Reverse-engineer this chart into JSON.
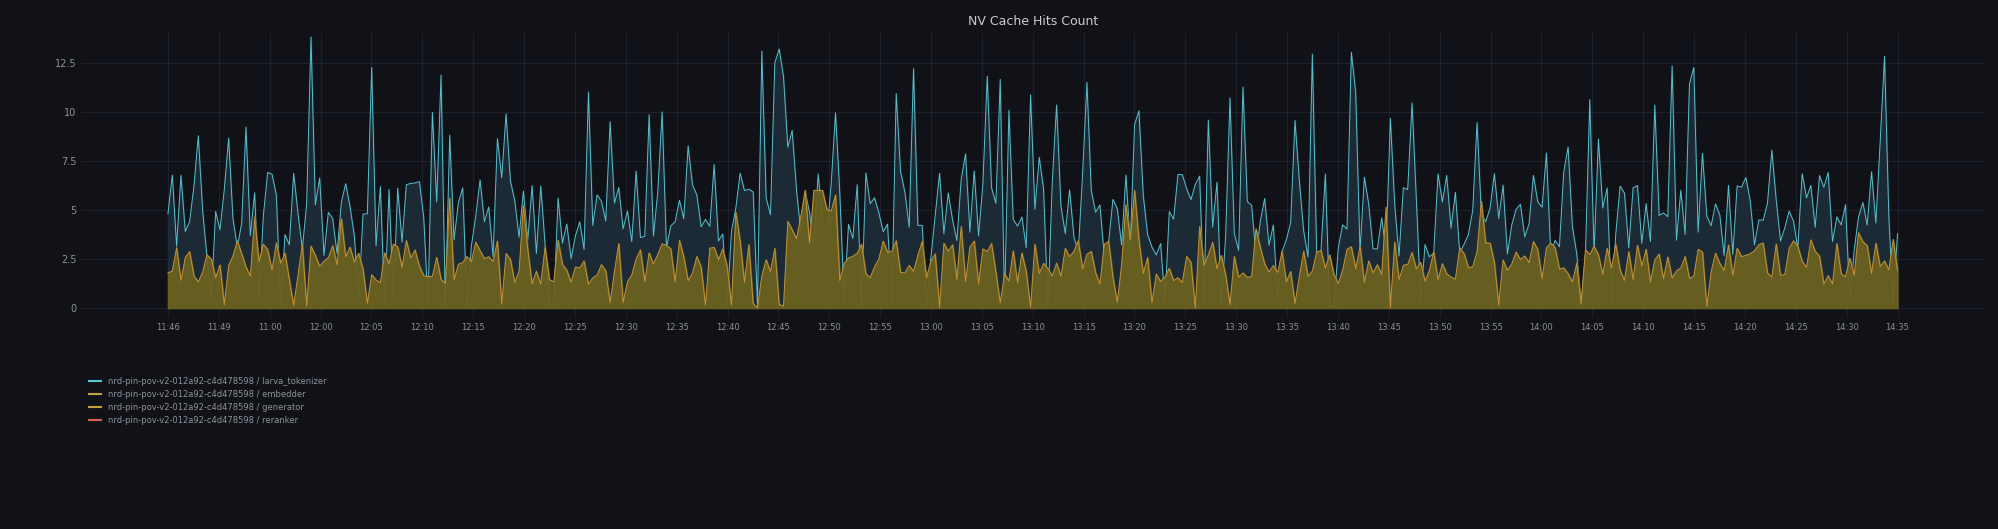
{
  "title": "NV Cache Hits Count",
  "bg_color": "#111217",
  "plot_bg_color": "#111217",
  "grid_color": "#2c3040",
  "title_color": "#cccccc",
  "tick_color": "#8e9099",
  "ylim": [
    -0.5,
    14.0
  ],
  "yticks": [
    0,
    2.5,
    5,
    7.5,
    10,
    12.5
  ],
  "xtick_labels": [
    "11:46",
    "11:49",
    "11:00",
    "12:00",
    "12:05",
    "12:10",
    "12:15",
    "12:20",
    "12:25",
    "12:30",
    "12:35",
    "12:40",
    "12:45",
    "12:50",
    "12:55",
    "13:00",
    "13:05",
    "13:10",
    "13:15",
    "13:20",
    "13:25",
    "13:30",
    "13:35",
    "13:40",
    "13:45",
    "13:50",
    "13:55",
    "14:00",
    "14:05",
    "14:10",
    "14:15",
    "14:20",
    "14:25",
    "14:30",
    "14:35"
  ],
  "series": [
    {
      "name": "nrd-pin-pov-v2-012a92-c4d478598 / larva_tokenizer",
      "line_color": "#5bc8d4",
      "fill_color": "#1e2d3a",
      "alpha": 0.85,
      "base_mean": 5.5,
      "base_std": 2.8
    },
    {
      "name": "nrd-pin-pov-v2-012a92-c4d478598 / embedder",
      "line_color": "#c8943a",
      "fill_color": "#6b6020",
      "alpha": 0.85,
      "base_mean": 2.0,
      "base_std": 0.6
    }
  ],
  "legend_entries": [
    {
      "label": "nrd-pin-pov-v2-012a92-c4d478598 / larva_tokenizer",
      "color": "#5bc8d4"
    },
    {
      "label": "nrd-pin-pov-v2-012a92-c4d478598 / embedder",
      "color": "#c8943a"
    },
    {
      "label": "nrd-pin-pov-v2-012a92-c4d478598 / generator",
      "color": "#c8943a"
    },
    {
      "label": "nrd-pin-pov-v2-012a92-c4d478598 / reranker",
      "color": "#c8943a"
    }
  ],
  "n_points": 400
}
